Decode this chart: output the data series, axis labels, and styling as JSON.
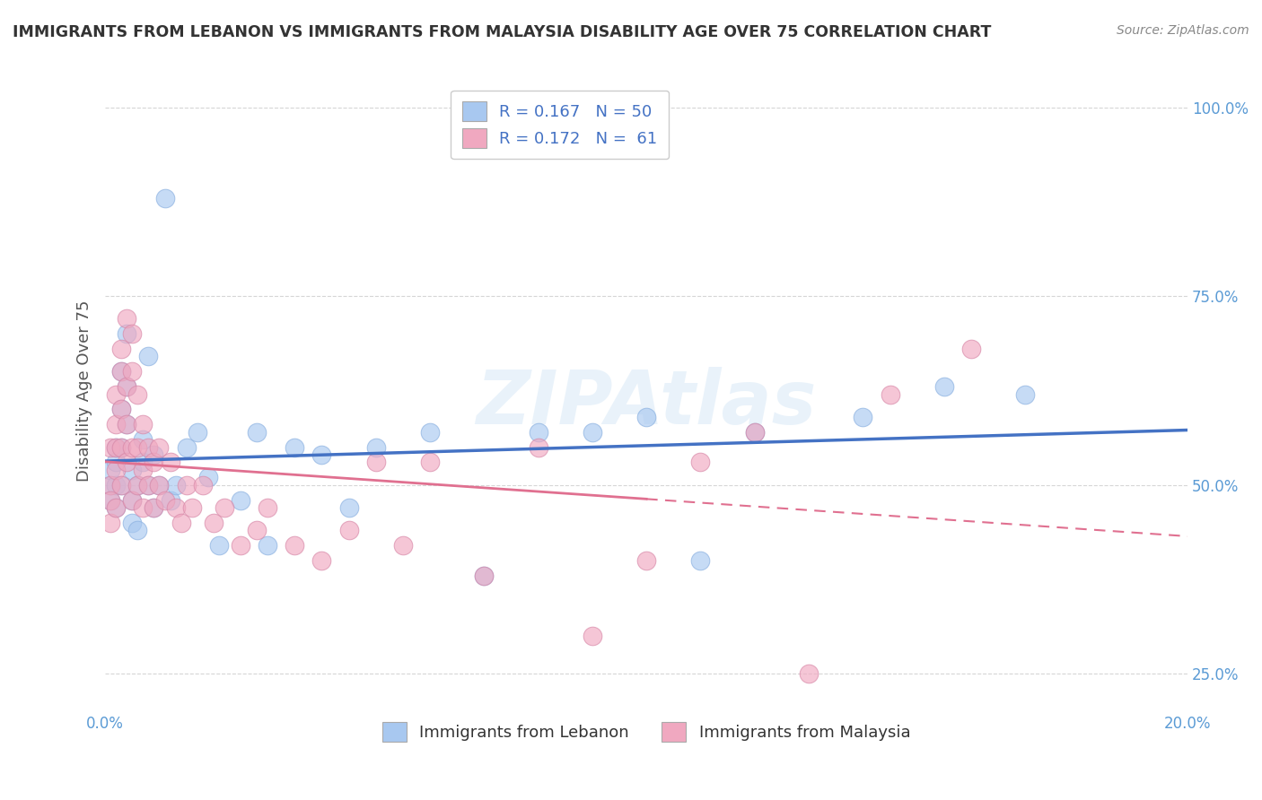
{
  "title": "IMMIGRANTS FROM LEBANON VS IMMIGRANTS FROM MALAYSIA DISABILITY AGE OVER 75 CORRELATION CHART",
  "source": "Source: ZipAtlas.com",
  "ylabel": "Disability Age Over 75",
  "xlim": [
    0.0,
    0.2
  ],
  "ylim": [
    0.2,
    1.05
  ],
  "x_ticks": [
    0.0,
    0.05,
    0.1,
    0.15,
    0.2
  ],
  "y_ticks": [
    0.25,
    0.5,
    0.75,
    1.0
  ],
  "legend_label1": "R = 0.167   N = 50",
  "legend_label2": "R = 0.172   N =  61",
  "color_lebanon": "#a8c8f0",
  "color_malaysia": "#f0a8c0",
  "line_color_lebanon": "#4472c4",
  "line_color_malaysia": "#e07090",
  "watermark": "ZIPAtlas",
  "legend_bottom_label1": "Immigrants from Lebanon",
  "legend_bottom_label2": "Immigrants from Malaysia",
  "lebanon_x": [
    0.001,
    0.001,
    0.001,
    0.002,
    0.002,
    0.002,
    0.002,
    0.003,
    0.003,
    0.003,
    0.003,
    0.004,
    0.004,
    0.004,
    0.005,
    0.005,
    0.005,
    0.006,
    0.006,
    0.007,
    0.007,
    0.008,
    0.008,
    0.009,
    0.009,
    0.01,
    0.011,
    0.012,
    0.013,
    0.015,
    0.017,
    0.019,
    0.021,
    0.025,
    0.028,
    0.03,
    0.035,
    0.04,
    0.045,
    0.05,
    0.06,
    0.07,
    0.08,
    0.09,
    0.1,
    0.11,
    0.12,
    0.14,
    0.155,
    0.17
  ],
  "lebanon_y": [
    0.5,
    0.52,
    0.48,
    0.55,
    0.53,
    0.5,
    0.47,
    0.6,
    0.55,
    0.65,
    0.5,
    0.63,
    0.58,
    0.7,
    0.48,
    0.52,
    0.45,
    0.5,
    0.44,
    0.56,
    0.53,
    0.67,
    0.5,
    0.54,
    0.47,
    0.5,
    0.88,
    0.48,
    0.5,
    0.55,
    0.57,
    0.51,
    0.42,
    0.48,
    0.57,
    0.42,
    0.55,
    0.54,
    0.47,
    0.55,
    0.57,
    0.38,
    0.57,
    0.57,
    0.59,
    0.4,
    0.57,
    0.59,
    0.63,
    0.62
  ],
  "malaysia_x": [
    0.001,
    0.001,
    0.001,
    0.001,
    0.002,
    0.002,
    0.002,
    0.002,
    0.002,
    0.003,
    0.003,
    0.003,
    0.003,
    0.003,
    0.004,
    0.004,
    0.004,
    0.004,
    0.005,
    0.005,
    0.005,
    0.005,
    0.006,
    0.006,
    0.006,
    0.007,
    0.007,
    0.007,
    0.008,
    0.008,
    0.009,
    0.009,
    0.01,
    0.01,
    0.011,
    0.012,
    0.013,
    0.014,
    0.015,
    0.016,
    0.018,
    0.02,
    0.022,
    0.025,
    0.028,
    0.03,
    0.035,
    0.04,
    0.045,
    0.05,
    0.055,
    0.06,
    0.07,
    0.08,
    0.09,
    0.1,
    0.11,
    0.12,
    0.13,
    0.145,
    0.16
  ],
  "malaysia_y": [
    0.5,
    0.55,
    0.48,
    0.45,
    0.62,
    0.55,
    0.58,
    0.52,
    0.47,
    0.68,
    0.65,
    0.6,
    0.55,
    0.5,
    0.72,
    0.63,
    0.58,
    0.53,
    0.7,
    0.65,
    0.55,
    0.48,
    0.62,
    0.55,
    0.5,
    0.58,
    0.52,
    0.47,
    0.55,
    0.5,
    0.53,
    0.47,
    0.55,
    0.5,
    0.48,
    0.53,
    0.47,
    0.45,
    0.5,
    0.47,
    0.5,
    0.45,
    0.47,
    0.42,
    0.44,
    0.47,
    0.42,
    0.4,
    0.44,
    0.53,
    0.42,
    0.53,
    0.38,
    0.55,
    0.3,
    0.4,
    0.53,
    0.57,
    0.25,
    0.62,
    0.68
  ]
}
